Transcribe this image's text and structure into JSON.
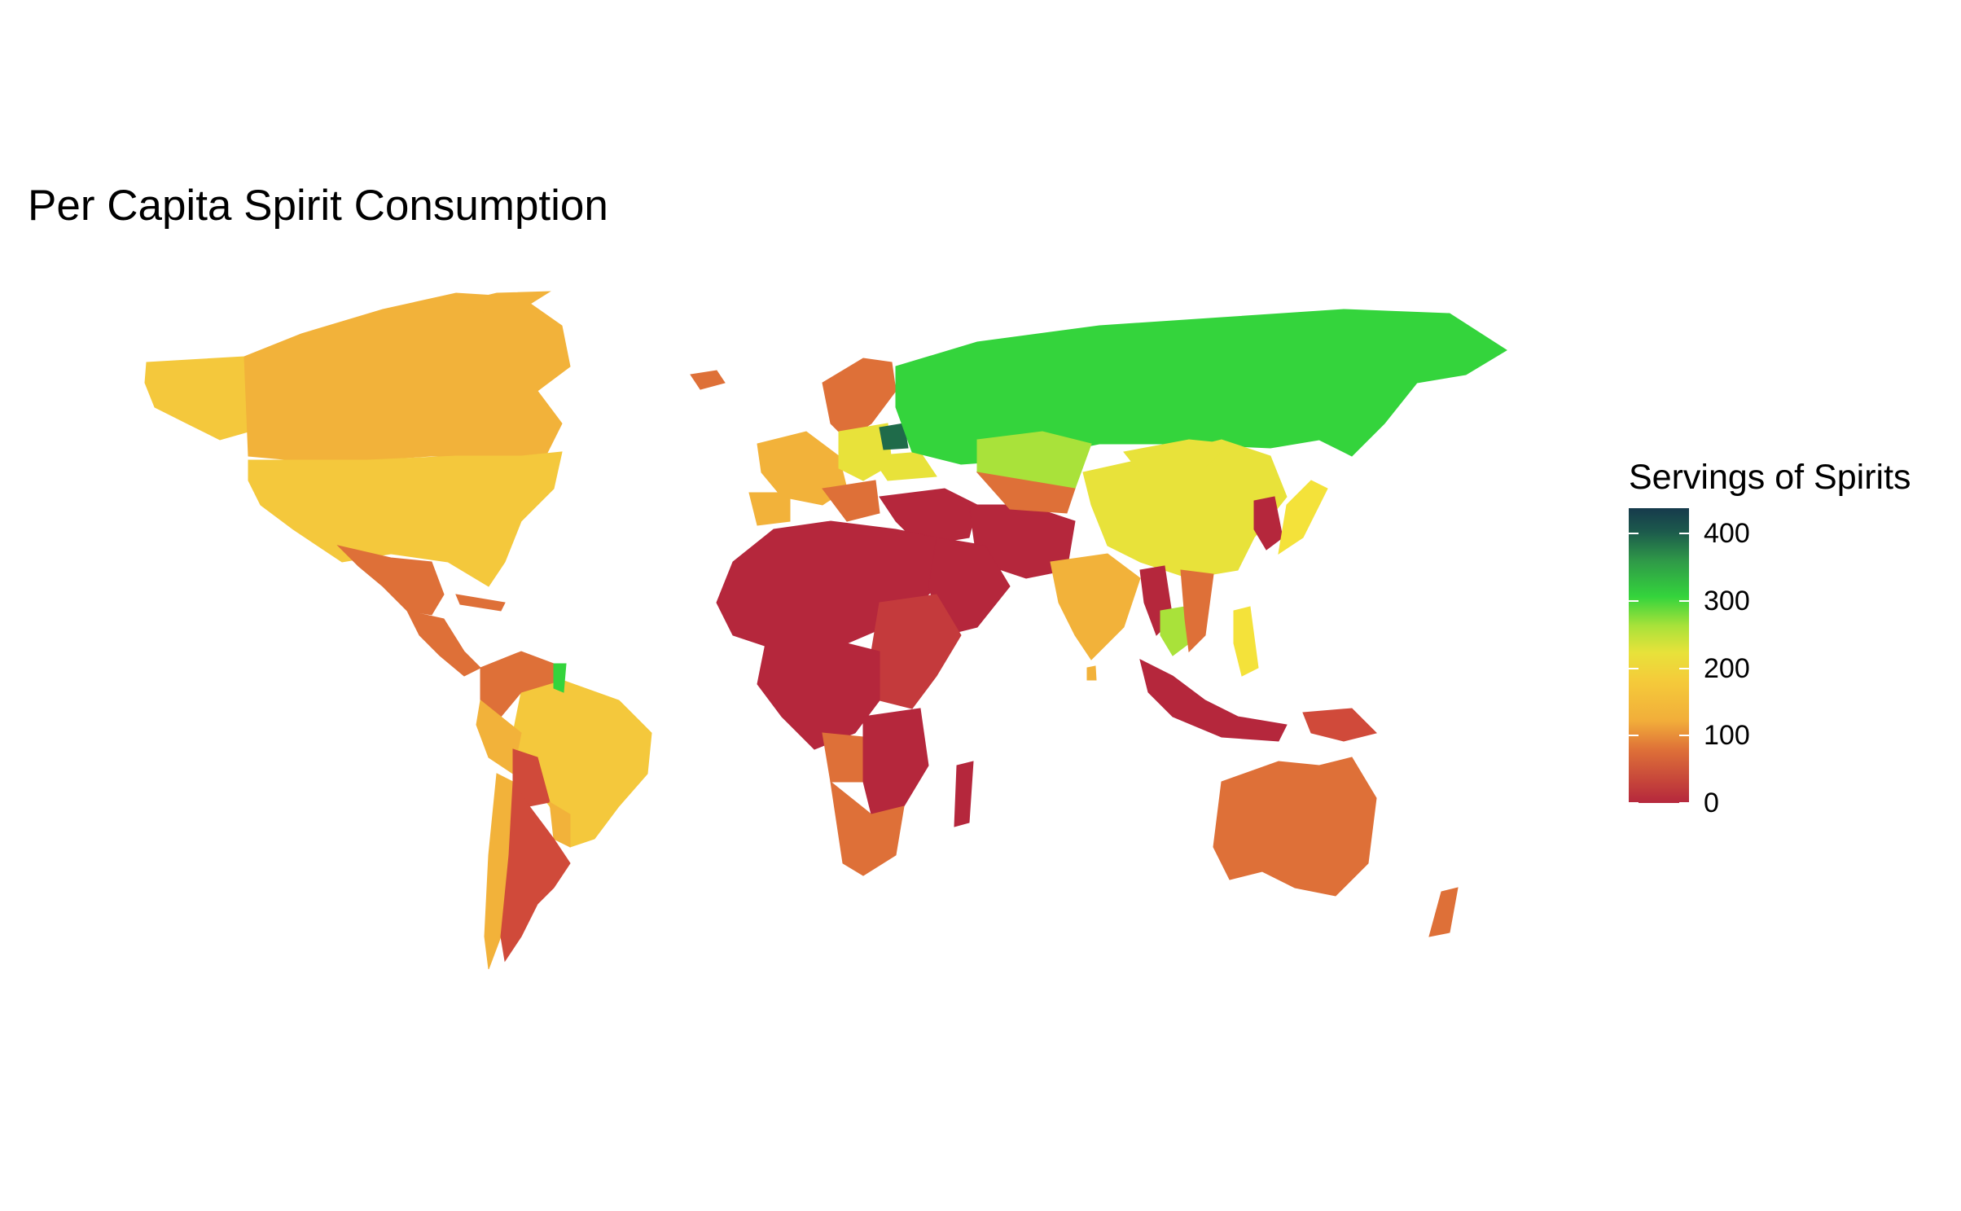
{
  "title": "Per Capita Spirit Consumption",
  "legend": {
    "title": "Servings of Spirits",
    "ticks": [
      "0",
      "100",
      "200",
      "300",
      "400"
    ],
    "min": 0,
    "max": 438
  },
  "colors": {
    "background": "#ffffff",
    "scale": [
      "#b5273c",
      "#de7038",
      "#f2ae3a",
      "#f4cc3a",
      "#e8e23a",
      "#a9e23a",
      "#34d43c",
      "#2f9a48",
      "#163a4c"
    ]
  },
  "regions": [
    {
      "name": "Alaska",
      "color": "#f4c83c"
    },
    {
      "name": "Canada",
      "color": "#f2b23a"
    },
    {
      "name": "Greenland",
      "color": "#f2b23a"
    },
    {
      "name": "United States",
      "color": "#f4c83c"
    },
    {
      "name": "Mexico",
      "color": "#de7038"
    },
    {
      "name": "Central America",
      "color": "#de7038"
    },
    {
      "name": "Caribbean",
      "color": "#de7038"
    },
    {
      "name": "Brazil",
      "color": "#f4c83c"
    },
    {
      "name": "Andes North",
      "color": "#de7038"
    },
    {
      "name": "Peru",
      "color": "#f2b23a"
    },
    {
      "name": "Guyana",
      "color": "#34d43c"
    },
    {
      "name": "Bolivia",
      "color": "#d04a3a"
    },
    {
      "name": "Paraguay",
      "color": "#f2b23a"
    },
    {
      "name": "Chile",
      "color": "#f2b23a"
    },
    {
      "name": "Argentina",
      "color": "#d04a3a"
    },
    {
      "name": "Iceland",
      "color": "#de7038"
    },
    {
      "name": "Scandinavia",
      "color": "#de7038"
    },
    {
      "name": "Western Europe",
      "color": "#f2b23a"
    },
    {
      "name": "Iberia",
      "color": "#f2b23a"
    },
    {
      "name": "Central Europe",
      "color": "#e8e23a"
    },
    {
      "name": "Belarus",
      "color": "#1f6b4a"
    },
    {
      "name": "Ukraine",
      "color": "#e8e23a"
    },
    {
      "name": "Balkans",
      "color": "#de7038"
    },
    {
      "name": "Russia",
      "color": "#34d43c"
    },
    {
      "name": "Kazakhstan",
      "color": "#a9e23a"
    },
    {
      "name": "Turkey and Middle East",
      "color": "#b5273c"
    },
    {
      "name": "Iran and Pakistan",
      "color": "#b5273c"
    },
    {
      "name": "Central Asia South",
      "color": "#de7038"
    },
    {
      "name": "China",
      "color": "#e8e23a"
    },
    {
      "name": "Mongolia",
      "color": "#e8e23a"
    },
    {
      "name": "Korea",
      "color": "#b5273c"
    },
    {
      "name": "Japan",
      "color": "#f4e23a"
    },
    {
      "name": "India",
      "color": "#f2b23a"
    },
    {
      "name": "Sri Lanka",
      "color": "#f2b23a"
    },
    {
      "name": "Myanmar",
      "color": "#b5273c"
    },
    {
      "name": "Thailand",
      "color": "#a9e23a"
    },
    {
      "name": "Indochina",
      "color": "#de7038"
    },
    {
      "name": "Philippines",
      "color": "#f4e23a"
    },
    {
      "name": "Malaysia and Indonesia",
      "color": "#b5273c"
    },
    {
      "name": "New Guinea",
      "color": "#d04a3a"
    },
    {
      "name": "North Africa",
      "color": "#b5273c"
    },
    {
      "name": "Arabian Peninsula",
      "color": "#b5273c"
    },
    {
      "name": "East Africa",
      "color": "#c43a3c"
    },
    {
      "name": "Central Africa",
      "color": "#b5273c"
    },
    {
      "name": "Angola",
      "color": "#de7038"
    },
    {
      "name": "Southern Africa",
      "color": "#b5273c"
    },
    {
      "name": "South Africa",
      "color": "#de7038"
    },
    {
      "name": "Madagascar",
      "color": "#b5273c"
    },
    {
      "name": "Australia",
      "color": "#de7038"
    },
    {
      "name": "New Zealand",
      "color": "#de7038"
    }
  ]
}
